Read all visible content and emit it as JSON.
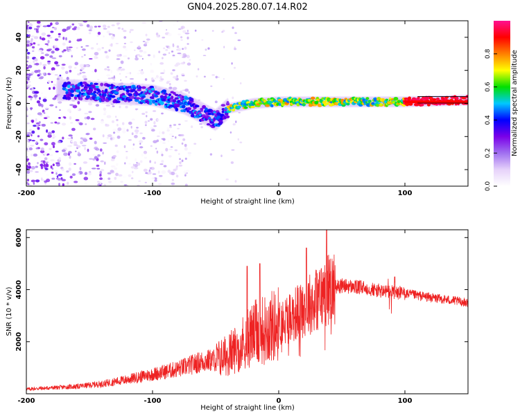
{
  "title": "GN04.2025.280.07.14.R02",
  "colors": {
    "axis": "#000000",
    "snr_line": "#ee2222",
    "baseline": "#000000"
  },
  "chart_data": [
    {
      "type": "heatmap",
      "xlabel": "Height of straight line (km)",
      "ylabel": "Frequency (Hz)",
      "xlim": [
        -200,
        150
      ],
      "ylim": [
        -50,
        50
      ],
      "xticks": [
        -200,
        -100,
        0,
        100
      ],
      "xtick_labels": [
        "-200",
        "-100",
        "0",
        "100"
      ],
      "yticks": [
        -40,
        -20,
        0,
        20,
        40
      ],
      "ytick_labels": [
        "-40",
        "-20",
        "0",
        "20",
        "40"
      ],
      "ridge": {
        "description_points_x": [
          -160,
          -130,
          -100,
          -75,
          -55,
          -50,
          -40,
          -20,
          0,
          50,
          100,
          150
        ],
        "description_points_y": [
          8,
          6,
          5,
          0,
          -8,
          -10,
          -3,
          0,
          1,
          1,
          1,
          2
        ]
      },
      "colorbar": {
        "label": "Normalized spectral amplitude",
        "range": [
          0,
          1
        ],
        "ticks": [
          0.0,
          0.2,
          0.4,
          0.6,
          0.8
        ],
        "tick_labels": [
          "0.0",
          "0.2",
          "0.4",
          "0.6",
          "0.8"
        ],
        "stops": [
          "#ffffff",
          "#e6d2fa",
          "#a070f0",
          "#7a00e8",
          "#0000ff",
          "#00c8ff",
          "#00e000",
          "#ffff00",
          "#ff8000",
          "#ff0000",
          "#ff1090"
        ]
      }
    },
    {
      "type": "line",
      "xlabel": "Height of straight line (km)",
      "ylabel": "SNR (10 * v/v)",
      "xlim": [
        -200,
        150
      ],
      "ylim": [
        0,
        6300
      ],
      "xticks": [
        -200,
        -100,
        0,
        100
      ],
      "xtick_labels": [
        "-200",
        "-100",
        "0",
        "100"
      ],
      "yticks": [
        2000,
        4000,
        6000
      ],
      "ytick_labels": [
        "2000",
        "4000",
        "6000"
      ],
      "series": [
        {
          "name": "SNR",
          "x": [
            -200,
            -180,
            -160,
            -140,
            -120,
            -100,
            -80,
            -60,
            -50,
            -40,
            -30,
            -20,
            -10,
            0,
            10,
            20,
            30,
            35,
            40,
            50,
            60,
            70,
            80,
            90,
            95,
            100,
            120,
            150
          ],
          "values": [
            180,
            230,
            280,
            380,
            550,
            750,
            950,
            1250,
            1300,
            1500,
            1900,
            2300,
            2500,
            2700,
            3000,
            3300,
            3650,
            3800,
            4050,
            4150,
            4100,
            4050,
            3950,
            3900,
            3850,
            3850,
            3700,
            3500
          ],
          "spike_x": [
            -25,
            -15,
            22,
            38,
            92
          ],
          "spike_y": [
            4900,
            5000,
            5600,
            6300,
            4500
          ]
        }
      ]
    }
  ]
}
